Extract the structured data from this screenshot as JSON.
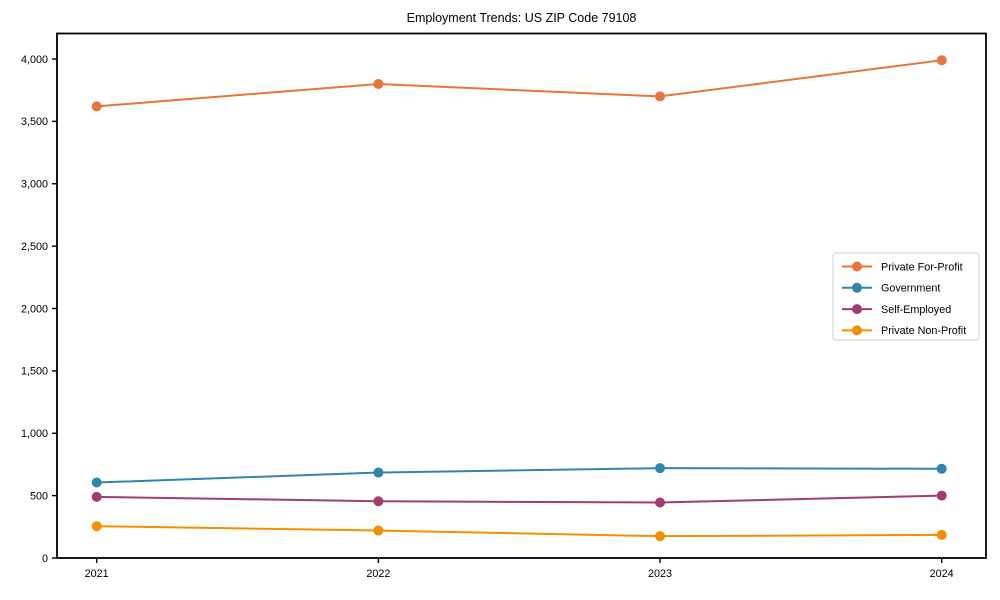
{
  "page": {
    "title": "Employment Trends: US ZIP Code 79108"
  },
  "chart_data": {
    "type": "line",
    "title": "Employment Trends: US ZIP Code 79108",
    "categories": [
      "2021",
      "2022",
      "2023",
      "2024"
    ],
    "series": [
      {
        "name": "Private For-Profit",
        "color": "#E8753C",
        "values": [
          3620,
          3800,
          3700,
          3990
        ]
      },
      {
        "name": "Government",
        "color": "#2E86AB",
        "values": [
          605,
          685,
          720,
          715
        ]
      },
      {
        "name": "Self-Employed",
        "color": "#A23B72",
        "values": [
          490,
          455,
          445,
          500
        ]
      },
      {
        "name": "Private Non-Profit",
        "color": "#F18F01",
        "values": [
          255,
          220,
          175,
          185
        ]
      }
    ],
    "xlabel": "",
    "ylabel": "",
    "ylim": [
      0,
      4000
    ],
    "ytick_step": 500,
    "ytick_labels": [
      "0",
      "500",
      "1,000",
      "1,500",
      "2,000",
      "2,500",
      "3,000",
      "3,500",
      "4,000"
    ],
    "grid": false,
    "legend_position": "center-right",
    "marker": "circle",
    "axis_color": "#000000",
    "legend_border_color": "#cccccc",
    "tick_label_color": "#000000"
  }
}
